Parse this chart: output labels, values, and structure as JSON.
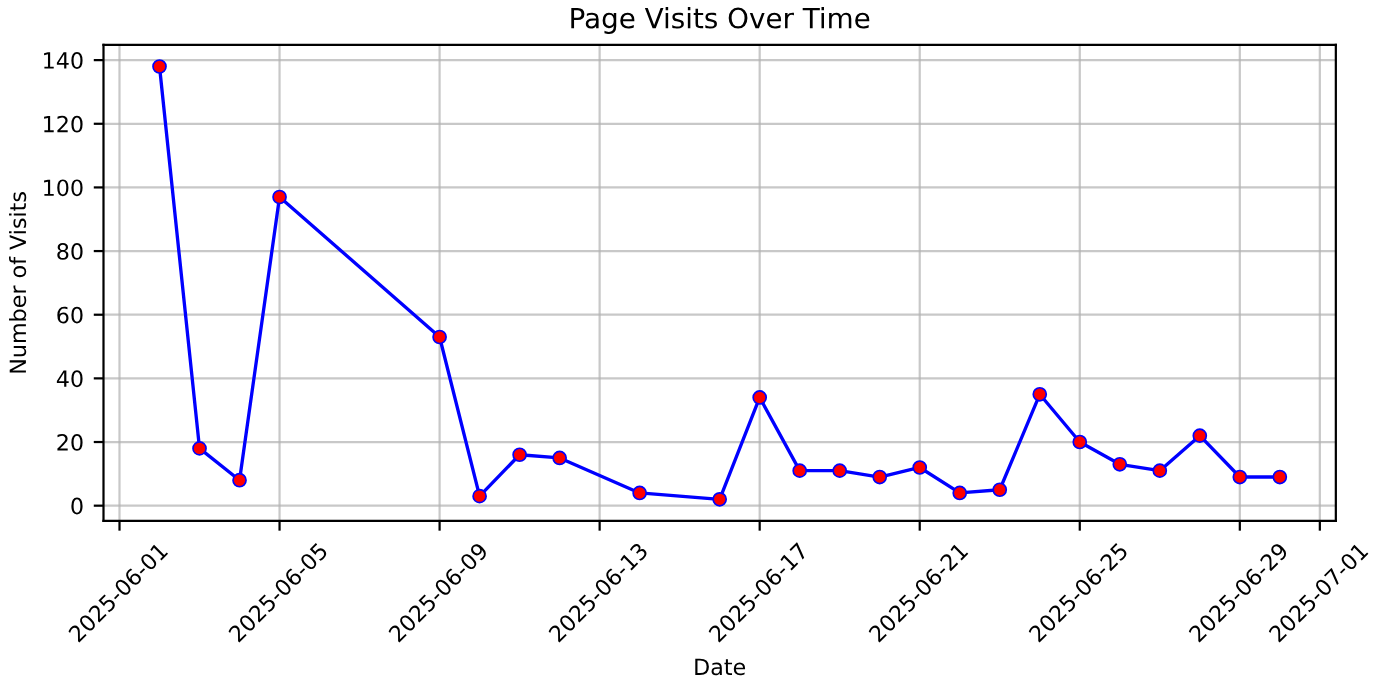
{
  "chart_data": {
    "type": "line",
    "title": "Page Visits Over Time",
    "xlabel": "Date",
    "ylabel": "Number of Visits",
    "x": [
      "2025-06-02",
      "2025-06-03",
      "2025-06-04",
      "2025-06-05",
      "2025-06-09",
      "2025-06-10",
      "2025-06-11",
      "2025-06-12",
      "2025-06-14",
      "2025-06-16",
      "2025-06-17",
      "2025-06-18",
      "2025-06-19",
      "2025-06-20",
      "2025-06-21",
      "2025-06-22",
      "2025-06-23",
      "2025-06-24",
      "2025-06-25",
      "2025-06-26",
      "2025-06-27",
      "2025-06-28",
      "2025-06-29",
      "2025-06-30"
    ],
    "series": [
      {
        "color": "#0000ff",
        "values": [
          138,
          18,
          8,
          97,
          53,
          3,
          16,
          15,
          4,
          2,
          34,
          11,
          11,
          9,
          12,
          4,
          5,
          35,
          20,
          13,
          11,
          22,
          9,
          9
        ],
        "colors": [
          "#ff0000",
          "#ff0000",
          "#ff0000",
          "#ff0000",
          "#ff0000",
          "#ff0000",
          "#ff0000",
          "#ff0000",
          "#ff0000",
          "#ff0000",
          "#ff0000",
          "#ff0000",
          "#ff0000",
          "#ff0000",
          "#ff0000",
          "#ff0000",
          "#ff0000",
          "#ff0000",
          "#ff0000",
          "#ff0000",
          "#ff0000",
          "#ff0000",
          "#ff0000",
          "#ff0000"
        ]
      }
    ],
    "xlim": [
      "2025-05-31T14:24",
      "2025-07-01T09:36"
    ],
    "xticks": [
      "2025-06-01",
      "2025-06-05",
      "2025-06-09",
      "2025-06-13",
      "2025-06-17",
      "2025-06-21",
      "2025-06-25",
      "2025-06-29",
      "2025-07-01"
    ],
    "ylim": [
      -4.8,
      144.8
    ],
    "yticks": [
      0,
      20,
      40,
      60,
      80,
      100,
      120,
      140
    ],
    "grid": true,
    "marker": "circle",
    "line_style": "solid"
  }
}
